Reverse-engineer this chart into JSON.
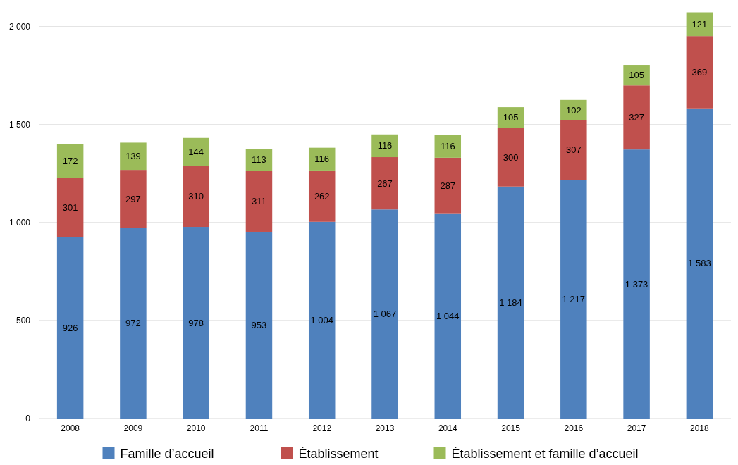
{
  "chart_data": {
    "type": "bar",
    "stacked": true,
    "categories": [
      "2008",
      "2009",
      "2010",
      "2011",
      "2012",
      "2013",
      "2014",
      "2015",
      "2016",
      "2017",
      "2018"
    ],
    "series": [
      {
        "name": "Famille d’accueil",
        "color": "#4f81bd",
        "values": [
          926,
          972,
          978,
          953,
          1004,
          1067,
          1044,
          1184,
          1217,
          1373,
          1583
        ],
        "value_labels": [
          "926",
          "972",
          "978",
          "953",
          "1 004",
          "1 067",
          "1 044",
          "1 184",
          "1 217",
          "1 373",
          "1 583"
        ]
      },
      {
        "name": "Établissement",
        "color": "#c0504d",
        "values": [
          301,
          297,
          310,
          311,
          262,
          267,
          287,
          300,
          307,
          327,
          369
        ],
        "value_labels": [
          "301",
          "297",
          "310",
          "311",
          "262",
          "267",
          "287",
          "300",
          "307",
          "327",
          "369"
        ]
      },
      {
        "name": "Établissement et famille d’accueil",
        "color": "#9bbb59",
        "values": [
          172,
          139,
          144,
          113,
          116,
          116,
          116,
          105,
          102,
          105,
          121
        ],
        "value_labels": [
          "172",
          "139",
          "144",
          "113",
          "116",
          "116",
          "116",
          "105",
          "102",
          "105",
          "121"
        ]
      }
    ],
    "ylim": [
      0,
      2100
    ],
    "yticks": [
      0,
      500,
      {
        "value": 1000,
        "label": "1 000"
      },
      {
        "value": 1500,
        "label": "1 500"
      },
      {
        "value": 2000,
        "label": "2 000"
      }
    ],
    "grid": "y",
    "legend": "bottom"
  }
}
